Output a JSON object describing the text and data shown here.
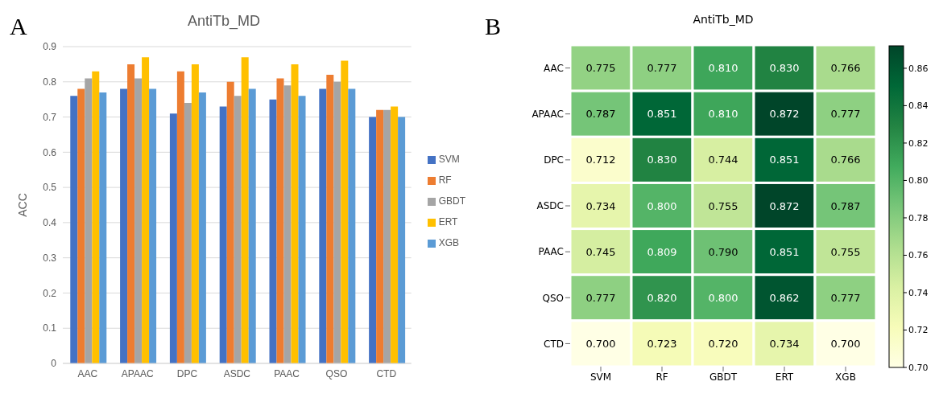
{
  "chart_data": [
    {
      "type": "bar",
      "title": "AntiTb_MD",
      "ylabel": "ACC",
      "annotations": [
        "A"
      ],
      "categories": [
        "AAC",
        "APAAC",
        "DPC",
        "ASDC",
        "PAAC",
        "QSO",
        "CTD"
      ],
      "series": [
        {
          "name": "SVM",
          "color": "#4472c4",
          "values": [
            0.76,
            0.78,
            0.71,
            0.73,
            0.75,
            0.78,
            0.7
          ]
        },
        {
          "name": "RF",
          "color": "#ed7d31",
          "values": [
            0.78,
            0.85,
            0.83,
            0.8,
            0.81,
            0.82,
            0.72
          ]
        },
        {
          "name": "GBDT",
          "color": "#a5a5a5",
          "values": [
            0.81,
            0.81,
            0.74,
            0.76,
            0.79,
            0.8,
            0.72
          ]
        },
        {
          "name": "ERT",
          "color": "#ffc000",
          "values": [
            0.83,
            0.87,
            0.85,
            0.87,
            0.85,
            0.86,
            0.73
          ]
        },
        {
          "name": "XGB",
          "color": "#5b9bd5",
          "values": [
            0.77,
            0.78,
            0.77,
            0.78,
            0.76,
            0.78,
            0.7
          ]
        }
      ],
      "ylim": [
        0,
        0.9
      ],
      "yticks": [
        0,
        0.1,
        0.2,
        0.3,
        0.4,
        0.5,
        0.6,
        0.7,
        0.8,
        0.9
      ],
      "grid": "y",
      "legend": "right"
    },
    {
      "type": "heatmap",
      "title": "AntiTb_MD",
      "annotations": [
        "B"
      ],
      "categories": [
        "SVM",
        "RF",
        "GBDT",
        "ERT",
        "XGB"
      ],
      "y_categories": [
        "AAC",
        "APAAC",
        "DPC",
        "ASDC",
        "PAAC",
        "QSO",
        "CTD"
      ],
      "cells": [
        [
          0.775,
          0.777,
          0.81,
          0.83,
          0.766
        ],
        [
          0.787,
          0.851,
          0.81,
          0.872,
          0.777
        ],
        [
          0.712,
          0.83,
          0.744,
          0.851,
          0.766
        ],
        [
          0.734,
          0.8,
          0.755,
          0.872,
          0.787
        ],
        [
          0.745,
          0.809,
          0.79,
          0.851,
          0.755
        ],
        [
          0.777,
          0.82,
          0.8,
          0.862,
          0.777
        ],
        [
          0.7,
          0.723,
          0.72,
          0.734,
          0.7
        ]
      ],
      "cell_labels": [
        [
          "0.775",
          "0.777",
          "0.810",
          "0.830",
          "0.766"
        ],
        [
          "0.787",
          "0.851",
          "0.810",
          "0.872",
          "0.777"
        ],
        [
          "0.712",
          "0.830",
          "0.744",
          "0.851",
          "0.766"
        ],
        [
          "0.734",
          "0.800",
          "0.755",
          "0.872",
          "0.787"
        ],
        [
          "0.745",
          "0.809",
          "0.790",
          "0.851",
          "0.755"
        ],
        [
          "0.777",
          "0.820",
          "0.800",
          "0.862",
          "0.777"
        ],
        [
          "0.700",
          "0.723",
          "0.720",
          "0.734",
          "0.700"
        ]
      ],
      "clim": [
        0.7,
        0.872
      ],
      "cticks": [
        {
          "value": 0.7,
          "label": "0.70"
        },
        {
          "value": 0.72,
          "label": "0.72"
        },
        {
          "value": 0.74,
          "label": "0.74"
        },
        {
          "value": 0.76,
          "label": "0.76"
        },
        {
          "value": 0.78,
          "label": "0.78"
        },
        {
          "value": 0.8,
          "label": "0.80"
        },
        {
          "value": 0.82,
          "label": "0.82"
        },
        {
          "value": 0.84,
          "label": "0.84"
        },
        {
          "value": 0.86,
          "label": "0.86"
        }
      ]
    }
  ]
}
